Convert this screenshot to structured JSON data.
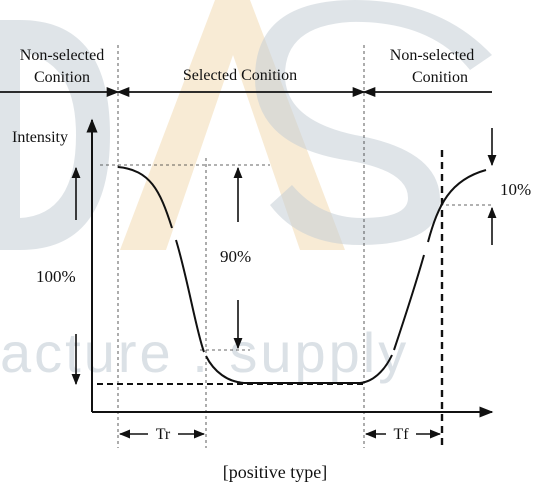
{
  "labels": {
    "non_selected_left_line1": "Non-selected",
    "non_selected_left_line2": "Conition",
    "selected": "Selected Conition",
    "non_selected_right_line1": "Non-selected",
    "non_selected_right_line2": "Conition",
    "y_axis": "Intensity",
    "pct_100": "100%",
    "pct_90": "90%",
    "pct_10": "10%",
    "tr": "Tr",
    "tf": "Tf",
    "caption": "[positive type]"
  },
  "watermark": {
    "text": "acture . supply",
    "letter_colors": [
      "#f6e2c3",
      "#c8d1d9"
    ]
  },
  "colors": {
    "ink": "#111111",
    "watermark_orange": "#f4ddb9",
    "watermark_gray": "#c4cdd6"
  }
}
